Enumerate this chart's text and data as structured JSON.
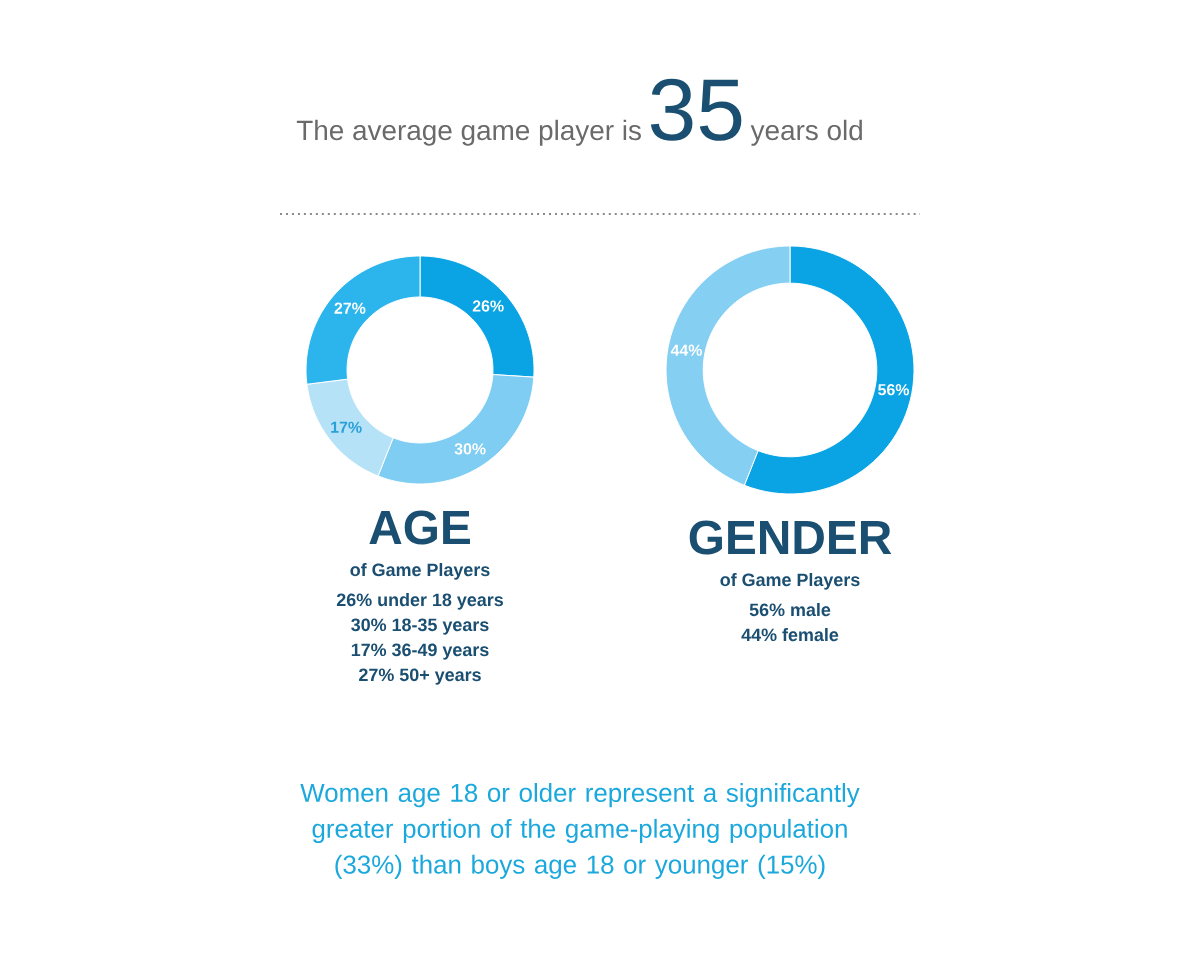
{
  "chart_data": [
    {
      "type": "other",
      "annotations": [
        "The average game player is",
        "35",
        "years old",
        "Women age 18 or older represent a significantly greater portion of the game-playing population (33%) than boys age 18 or younger (15%)"
      ]
    },
    {
      "type": "donut",
      "title": "AGE",
      "subtitle": "of Game Players",
      "categories": [
        null,
        null,
        null,
        null
      ],
      "values": [
        26,
        30,
        17,
        27
      ],
      "colors": [
        "#0aa3e3",
        "#7fcdf2",
        "#b5e2f7",
        "#2bb5ec"
      ],
      "value_labels": [
        "26%",
        "30%",
        "17%",
        "27%"
      ],
      "annotations": [
        "26% under 18 years",
        "30% 18-35 years",
        "17% 36-49 years",
        "27% 50+ years"
      ]
    },
    {
      "type": "donut",
      "title": "GENDER",
      "subtitle": "of Game Players",
      "categories": [
        null,
        null
      ],
      "values": [
        56,
        44
      ],
      "colors": [
        "#0aa3e3",
        "#85cff2"
      ],
      "value_labels": [
        "56%",
        "44%"
      ],
      "annotations": [
        "56% male",
        "44% female"
      ]
    }
  ]
}
